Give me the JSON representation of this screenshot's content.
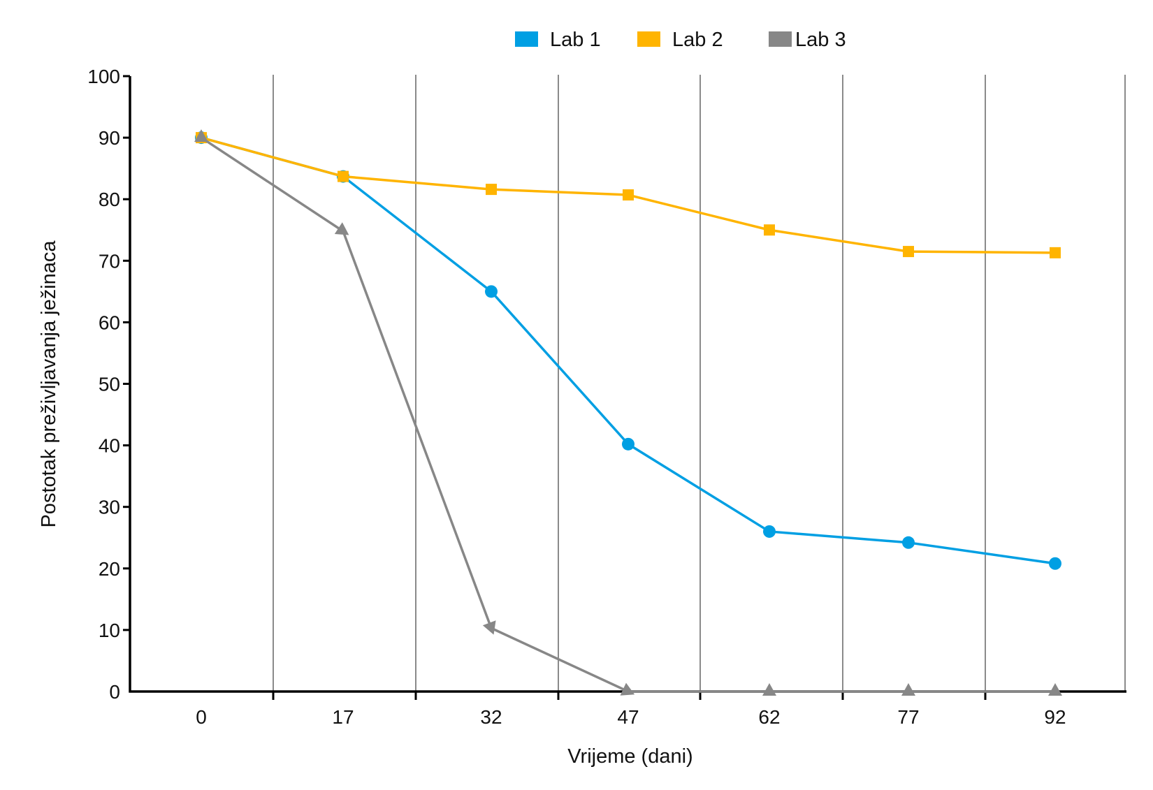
{
  "chart_data": {
    "type": "line",
    "title": "",
    "xlabel": "Vrijeme (dani)",
    "ylabel": "Postotak preživljavanja ježinaca",
    "categories": [
      "0",
      "17",
      "32",
      "47",
      "62",
      "77",
      "92"
    ],
    "yticks": [
      "0",
      "10",
      "20",
      "30",
      "40",
      "50",
      "60",
      "70",
      "80",
      "90",
      "100"
    ],
    "ylim": [
      0,
      100
    ],
    "grid": "vertical",
    "legend_position": "top-center",
    "series": [
      {
        "name": "Lab 1",
        "color": "#009FE3",
        "marker": "circle",
        "values": [
          90,
          83.7,
          65,
          40.2,
          26,
          24.2,
          20.8
        ]
      },
      {
        "name": "Lab 2",
        "color": "#FFB400",
        "marker": "square",
        "values": [
          90,
          83.7,
          81.6,
          80.7,
          75,
          71.5,
          71.3
        ]
      },
      {
        "name": "Lab 3",
        "color": "#878787",
        "marker": "triangle",
        "values": [
          90,
          74.8,
          10.3,
          0,
          0,
          0,
          0
        ]
      }
    ]
  }
}
